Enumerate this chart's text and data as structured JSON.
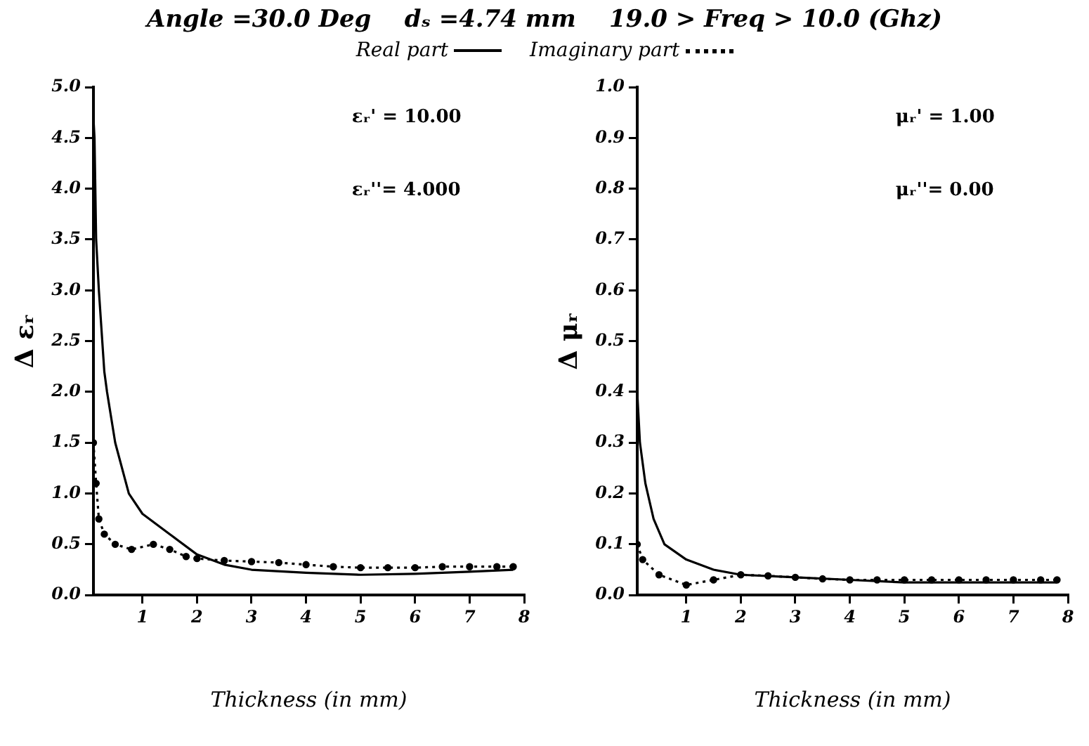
{
  "chart_data": [
    {
      "type": "line",
      "title": "Angle =30.0 Deg    dₛ =4.74 mm    19.0 > Freq > 10.0 (Ghz)",
      "xlabel": "Thickness (in mm)",
      "ylabel": "Δ εᵣ",
      "legend": "top",
      "grid": false,
      "xlim": [
        0.1,
        8
      ],
      "xticks": [
        1,
        2,
        3,
        4,
        5,
        6,
        7,
        8
      ],
      "ylim": [
        0,
        5
      ],
      "yticks": [
        {
          "value": 0,
          "label": "0.0"
        },
        {
          "value": 0.5,
          "label": "0.5"
        },
        {
          "value": 1,
          "label": "1.0"
        },
        {
          "value": 1.5,
          "label": "1.5"
        },
        {
          "value": 2,
          "label": "2.0"
        },
        {
          "value": 2.5,
          "label": "2.5"
        },
        {
          "value": 3,
          "label": "3.0"
        },
        {
          "value": 3.5,
          "label": "3.5"
        },
        {
          "value": 4,
          "label": "4.0"
        },
        {
          "value": 4.5,
          "label": "4.5"
        },
        {
          "value": 5,
          "label": "5.0"
        }
      ],
      "annotations": [
        "εᵣ' = 10.00",
        "εᵣ''= 4.000"
      ],
      "series": [
        {
          "name": "Real part",
          "color": "#000000",
          "line_style": "solid",
          "marker": "none",
          "x": [
            0.1,
            0.12,
            0.15,
            0.2,
            0.3,
            0.35,
            0.5,
            0.75,
            1,
            1.5,
            2,
            2.5,
            3,
            4,
            5,
            6,
            7,
            7.8
          ],
          "values": [
            4.7,
            4.5,
            3.5,
            3.0,
            2.2,
            2.0,
            1.5,
            1.0,
            0.8,
            0.6,
            0.4,
            0.3,
            0.25,
            0.22,
            0.2,
            0.21,
            0.23,
            0.25
          ]
        },
        {
          "name": "Imaginary part",
          "color": "#000000",
          "line_style": "dotted",
          "marker": "circle",
          "x": [
            0.1,
            0.15,
            0.2,
            0.3,
            0.5,
            0.8,
            1.2,
            1.5,
            1.8,
            2,
            2.5,
            3,
            3.5,
            4,
            4.5,
            5,
            5.5,
            6,
            6.5,
            7,
            7.5,
            7.8
          ],
          "values": [
            1.5,
            1.1,
            0.75,
            0.6,
            0.5,
            0.45,
            0.5,
            0.45,
            0.38,
            0.36,
            0.34,
            0.33,
            0.32,
            0.3,
            0.28,
            0.27,
            0.27,
            0.27,
            0.28,
            0.28,
            0.28,
            0.28
          ]
        }
      ]
    },
    {
      "type": "line",
      "xlabel": "Thickness (in mm)",
      "ylabel": "Δ μᵣ",
      "grid": false,
      "xlim": [
        0.1,
        8
      ],
      "xticks": [
        1,
        2,
        3,
        4,
        5,
        6,
        7,
        8
      ],
      "ylim": [
        0,
        1
      ],
      "yticks": [
        {
          "value": 0,
          "label": "0.0"
        },
        {
          "value": 0.1,
          "label": "0.1"
        },
        {
          "value": 0.2,
          "label": "0.2"
        },
        {
          "value": 0.3,
          "label": "0.3"
        },
        {
          "value": 0.4,
          "label": "0.4"
        },
        {
          "value": 0.5,
          "label": "0.5"
        },
        {
          "value": 0.6,
          "label": "0.6"
        },
        {
          "value": 0.7,
          "label": "0.7"
        },
        {
          "value": 0.8,
          "label": "0.8"
        },
        {
          "value": 0.9,
          "label": "0.9"
        },
        {
          "value": 1,
          "label": "1.0"
        }
      ],
      "annotations": [
        "μᵣ' = 1.00",
        "μᵣ''= 0.00"
      ],
      "series": [
        {
          "color": "#000000",
          "line_style": "solid",
          "marker": "none",
          "x": [
            0.1,
            0.15,
            0.25,
            0.4,
            0.6,
            1,
            1.5,
            2,
            3,
            4,
            5,
            6,
            7,
            7.8
          ],
          "values": [
            0.4,
            0.3,
            0.22,
            0.15,
            0.1,
            0.07,
            0.05,
            0.04,
            0.035,
            0.03,
            0.025,
            0.025,
            0.025,
            0.025
          ]
        },
        {
          "color": "#000000",
          "line_style": "dotted",
          "marker": "circle",
          "x": [
            0.1,
            0.2,
            0.5,
            1,
            1.5,
            2,
            2.5,
            3,
            3.5,
            4,
            4.5,
            5,
            5.5,
            6,
            6.5,
            7,
            7.5,
            7.8
          ],
          "values": [
            0.1,
            0.07,
            0.04,
            0.02,
            0.03,
            0.04,
            0.038,
            0.035,
            0.032,
            0.03,
            0.03,
            0.03,
            0.03,
            0.03,
            0.03,
            0.03,
            0.03,
            0.03
          ]
        }
      ]
    }
  ]
}
